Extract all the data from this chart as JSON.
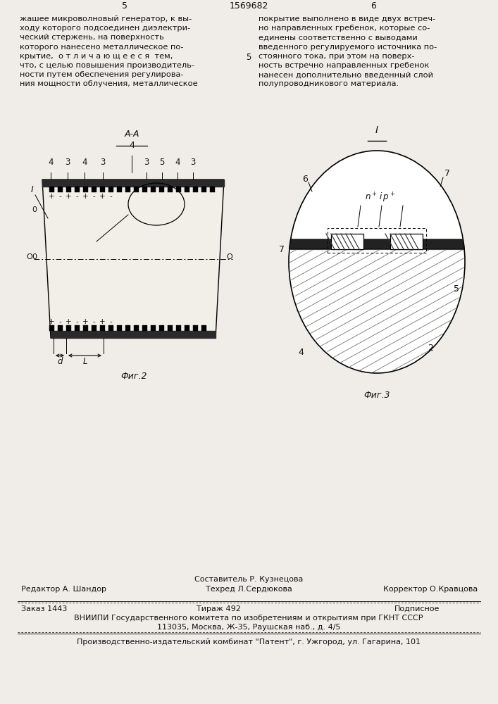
{
  "bg_color": "#f0ede8",
  "text_color": "#111111",
  "page_number_left": "5",
  "page_number_center": "1569682",
  "page_number_right": "6",
  "col1_text": [
    "жашее микроволновый генератор, к вы-",
    "ходу которого подсоединен диэлектри-",
    "ческий стержень, на поверхность",
    "которого нанесено металлическое по-",
    "крытие,  о т л и ч а ю щ е е с я  тем,",
    "что, с целью повышения производитель-",
    "ности путем обеспечения регулирова-",
    "ния мощности облучения, металлическое"
  ],
  "col2_marker": "5",
  "col2_text": [
    "покрытие выполнено в виде двух встреч-",
    "но направленных гребенок, которые со-",
    "единены соответственно с выводами",
    "введенного регулируемого источника по-",
    "стоянного тока, при этом на поверх-",
    "ность встречно направленных гребенок",
    "нанесен дополнительно введенный слой",
    "полупроводникового материала."
  ],
  "fig2_label": "Фиг.2",
  "fig3_label": "Фиг.3",
  "footer_line1_left": "Редактор А. Шандор",
  "footer_line1_center_top": "Составитель Р. Кузнецова",
  "footer_line1_center_bot": "Техред Л.Сердюкова",
  "footer_line1_right": "Корректор О.Кравцова",
  "footer_line2_left": "Заказ 1443",
  "footer_line2_center": "Тираж 492",
  "footer_line2_right": "Подписное",
  "footer_line3": "ВНИИПИ Государственного комитета по изобретениям и открытиям при ГКНТ СССР",
  "footer_line4": "113035, Москва, Ж-35, Раушская наб., д. 4/5",
  "footer_line5": "Производственно-издательский комбинат \"Патент\", г. Ужгород, ул. Гагарина, 101"
}
